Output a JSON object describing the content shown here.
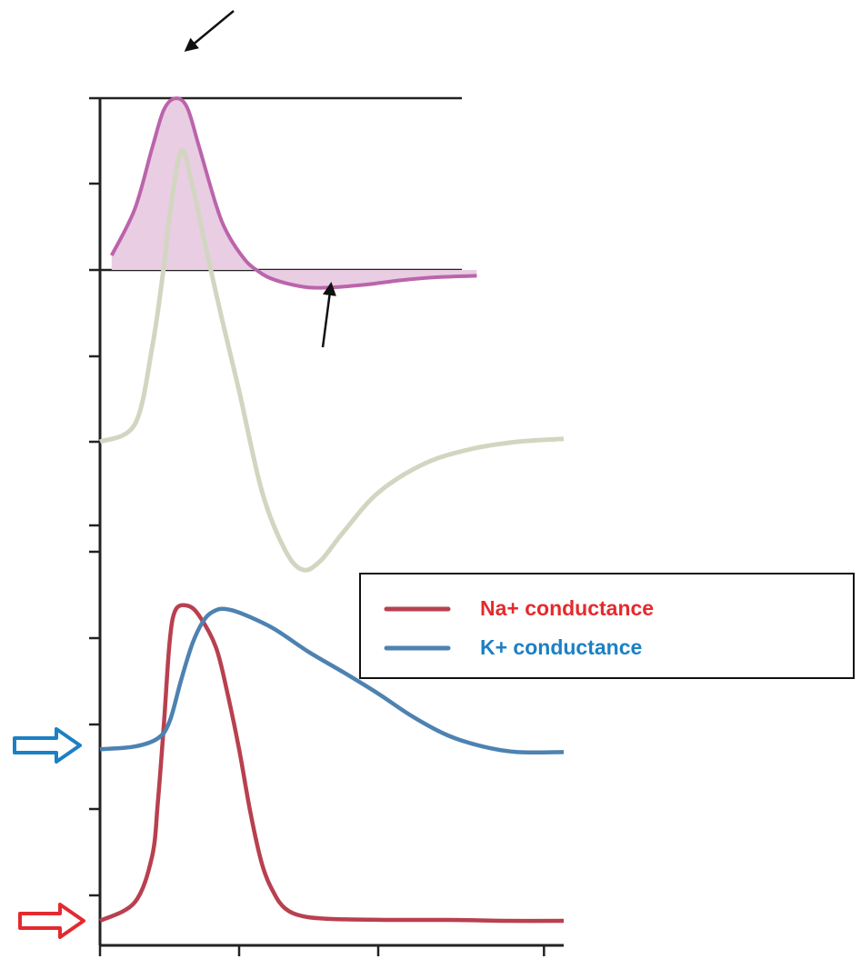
{
  "chart_data": [
    {
      "type": "area",
      "title": "",
      "xlabel": "",
      "ylabel": "",
      "fill_color": "#e8cde3",
      "line_color": "#bb64ab",
      "series": [
        {
          "x": [
            0.1,
            0.3,
            0.45,
            0.55,
            0.65,
            0.75,
            0.85,
            1.0,
            1.1,
            1.25,
            1.35,
            1.45,
            1.6,
            1.8,
            2.0,
            2.3,
            2.6,
            2.9,
            3.25
          ],
          "y": [
            0.1,
            0.42,
            0.84,
            1.1,
            1.18,
            1.12,
            0.86,
            0.45,
            0.25,
            0.07,
            0.0,
            -0.05,
            -0.09,
            -0.12,
            -0.12,
            -0.1,
            -0.07,
            -0.05,
            -0.04
          ]
        }
      ],
      "annotations": [
        "arrow-to-peak",
        "arrow-to-undershoot"
      ]
    },
    {
      "type": "line",
      "title": "",
      "xlabel": "",
      "ylabel": "",
      "line_color": "#d2d6c1",
      "series": [
        {
          "x": [
            0.0,
            0.3,
            0.45,
            0.55,
            0.6,
            0.7,
            0.8,
            0.9,
            1.05,
            1.2,
            1.4,
            1.6,
            1.75,
            1.9,
            2.1,
            2.4,
            2.8,
            3.2,
            3.6,
            4.0
          ],
          "y": [
            0.0,
            0.12,
            0.65,
            1.2,
            1.55,
            2.0,
            1.75,
            1.38,
            0.85,
            0.35,
            -0.35,
            -0.75,
            -0.88,
            -0.82,
            -0.62,
            -0.35,
            -0.15,
            -0.05,
            0.0,
            0.02
          ]
        }
      ]
    },
    {
      "type": "line",
      "title": "",
      "xlabel": "",
      "ylabel": "",
      "xlim": [
        0,
        4
      ],
      "legend": "right",
      "series": [
        {
          "name": "Na+ conductance",
          "color": "#b8404f",
          "x": [
            0.0,
            0.3,
            0.45,
            0.5,
            0.55,
            0.6,
            0.65,
            0.75,
            0.85,
            1.0,
            1.1,
            1.2,
            1.3,
            1.4,
            1.5,
            1.6,
            1.75,
            2.0,
            2.5,
            3.0,
            3.5,
            4.0
          ],
          "y": [
            0.0,
            0.2,
            0.7,
            1.3,
            2.1,
            3.0,
            3.35,
            3.4,
            3.3,
            2.95,
            2.45,
            1.85,
            1.15,
            0.6,
            0.3,
            0.13,
            0.05,
            0.02,
            0.01,
            0.01,
            0.0,
            0.0
          ]
        },
        {
          "name": "K+ conductance",
          "color": "#4d82b1",
          "x": [
            0.0,
            0.3,
            0.5,
            0.6,
            0.7,
            0.8,
            0.9,
            1.0,
            1.1,
            1.25,
            1.5,
            1.8,
            2.1,
            2.4,
            2.7,
            3.0,
            3.3,
            3.6,
            4.0
          ],
          "y": [
            1.85,
            1.88,
            1.97,
            2.15,
            2.6,
            3.0,
            3.25,
            3.35,
            3.36,
            3.3,
            3.15,
            2.9,
            2.68,
            2.45,
            2.2,
            2.0,
            1.88,
            1.82,
            1.82
          ]
        }
      ],
      "legend_entries": [
        "Na+ conductance",
        "K+ conductance"
      ],
      "marker_arrows": [
        {
          "name": "k-baseline-arrow",
          "color": "#1c80c3"
        },
        {
          "name": "na-baseline-arrow",
          "color": "#e42a2e"
        }
      ]
    }
  ]
}
